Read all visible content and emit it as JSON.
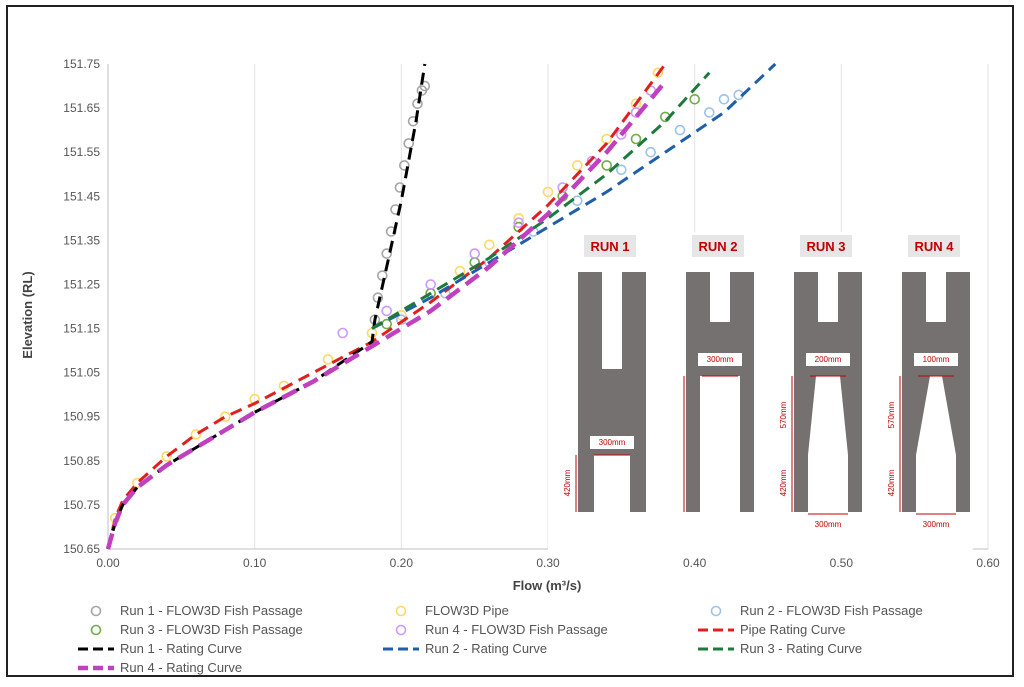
{
  "chart_data": {
    "type": "scatter",
    "xlabel": "Flow (m³/s)",
    "ylabel": "Elevation (RL)",
    "xlim": [
      0.0,
      0.6
    ],
    "ylim": [
      150.65,
      151.75
    ],
    "x_ticks": [
      "0.00",
      "0.10",
      "0.20",
      "0.30",
      "0.40",
      "0.50",
      "0.60"
    ],
    "y_ticks": [
      "150.65",
      "150.75",
      "150.85",
      "150.95",
      "151.05",
      "151.15",
      "151.25",
      "151.35",
      "151.45",
      "151.55",
      "151.65",
      "151.75"
    ],
    "grid": "vertical",
    "legend_position": "bottom",
    "series": [
      {
        "name": "Run 1 - FLOW3D Fish Passage",
        "kind": "scatter",
        "color": "#a6a6a6",
        "x": [
          0.182,
          0.184,
          0.187,
          0.19,
          0.193,
          0.196,
          0.199,
          0.202,
          0.205,
          0.208,
          0.211,
          0.214,
          0.216
        ],
        "y": [
          151.17,
          151.22,
          151.27,
          151.32,
          151.37,
          151.42,
          151.47,
          151.52,
          151.57,
          151.62,
          151.66,
          151.69,
          151.7
        ]
      },
      {
        "name": "FLOW3D Pipe",
        "kind": "scatter",
        "color": "#ffd966",
        "x": [
          0.005,
          0.02,
          0.04,
          0.06,
          0.08,
          0.1,
          0.12,
          0.15,
          0.18,
          0.2,
          0.22,
          0.24,
          0.26,
          0.28,
          0.3,
          0.32,
          0.34,
          0.36,
          0.375
        ],
        "y": [
          150.72,
          150.8,
          150.86,
          150.91,
          150.95,
          150.99,
          151.02,
          151.08,
          151.14,
          151.18,
          151.23,
          151.28,
          151.34,
          151.4,
          151.46,
          151.52,
          151.58,
          151.66,
          151.73
        ]
      },
      {
        "name": "Run 2 - FLOW3D Fish Passage",
        "kind": "scatter",
        "color": "#9dc3e6",
        "x": [
          0.2,
          0.23,
          0.26,
          0.29,
          0.32,
          0.35,
          0.37,
          0.39,
          0.41,
          0.42,
          0.43
        ],
        "y": [
          151.17,
          151.23,
          151.3,
          151.37,
          151.44,
          151.51,
          151.55,
          151.6,
          151.64,
          151.67,
          151.68
        ]
      },
      {
        "name": "Run 3 - FLOW3D Fish Passage",
        "kind": "scatter",
        "color": "#70ad47",
        "x": [
          0.19,
          0.22,
          0.25,
          0.28,
          0.31,
          0.34,
          0.36,
          0.38,
          0.4
        ],
        "y": [
          151.16,
          151.23,
          151.3,
          151.38,
          151.45,
          151.52,
          151.58,
          151.63,
          151.67
        ]
      },
      {
        "name": "Run 4 - FLOW3D Fish Passage",
        "kind": "scatter",
        "color": "#cc99ff",
        "x": [
          0.16,
          0.19,
          0.22,
          0.25,
          0.28,
          0.31,
          0.33,
          0.35,
          0.36,
          0.37
        ],
        "y": [
          151.14,
          151.19,
          151.25,
          151.32,
          151.39,
          151.47,
          151.53,
          151.59,
          151.64,
          151.69
        ]
      },
      {
        "name": "Pipe Rating Curve",
        "kind": "line",
        "color": "#e02020",
        "x": [
          0.0,
          0.005,
          0.01,
          0.02,
          0.04,
          0.06,
          0.08,
          0.1,
          0.14,
          0.18,
          0.22,
          0.26,
          0.3,
          0.34,
          0.38
        ],
        "y": [
          150.65,
          150.72,
          150.76,
          150.8,
          150.86,
          150.91,
          150.95,
          150.98,
          151.05,
          151.12,
          151.21,
          151.31,
          151.43,
          151.57,
          151.75
        ]
      },
      {
        "name": "Run 1 - Rating Curve",
        "kind": "line",
        "color": "#000000",
        "x": [
          0.0,
          0.005,
          0.01,
          0.02,
          0.04,
          0.06,
          0.08,
          0.1,
          0.14,
          0.18,
          0.182,
          0.19,
          0.2,
          0.21,
          0.216
        ],
        "y": [
          150.65,
          150.71,
          150.75,
          150.79,
          150.84,
          150.88,
          150.92,
          150.96,
          151.03,
          151.12,
          151.17,
          151.29,
          151.44,
          151.62,
          151.75
        ]
      },
      {
        "name": "Run 2 - Rating Curve",
        "kind": "line",
        "color": "#1f5fa8",
        "x": [
          0.18,
          0.22,
          0.26,
          0.3,
          0.34,
          0.38,
          0.42,
          0.455
        ],
        "y": [
          151.15,
          151.22,
          151.3,
          151.38,
          151.46,
          151.55,
          151.64,
          151.75
        ]
      },
      {
        "name": "Run 3 - Rating Curve",
        "kind": "line",
        "color": "#1e7a3c",
        "x": [
          0.18,
          0.22,
          0.26,
          0.3,
          0.34,
          0.38,
          0.41
        ],
        "y": [
          151.15,
          151.23,
          151.31,
          151.4,
          151.5,
          151.62,
          151.73
        ]
      },
      {
        "name": "Run 4 - Rating Curve",
        "kind": "line",
        "color": "#c040c0",
        "x": [
          0.0,
          0.005,
          0.01,
          0.02,
          0.04,
          0.06,
          0.08,
          0.1,
          0.14,
          0.18,
          0.22,
          0.26,
          0.3,
          0.34,
          0.38
        ],
        "y": [
          150.65,
          150.71,
          150.75,
          150.79,
          150.84,
          150.88,
          150.92,
          150.96,
          151.03,
          151.11,
          151.19,
          151.29,
          151.41,
          151.55,
          151.71
        ]
      }
    ],
    "legend_rows": [
      [
        "Run 1 - FLOW3D Fish Passage",
        "FLOW3D Pipe",
        "Run 2 - FLOW3D Fish Passage"
      ],
      [
        "Run 3 - FLOW3D Fish Passage",
        "Run 4 - FLOW3D Fish Passage",
        "Pipe Rating Curve"
      ],
      [
        "Run 1 - Rating Curve",
        "Run 2 - Rating Curve",
        "Run 3 - Rating Curve"
      ],
      [
        "Run 4 - Rating Curve"
      ]
    ],
    "inset": {
      "runs": [
        {
          "label": "RUN 1",
          "top_width": "300mm",
          "height": "420mm"
        },
        {
          "label": "RUN 2",
          "top_width": "300mm",
          "height": ""
        },
        {
          "label": "RUN 3",
          "top_width": "200mm",
          "height_upper": "570mm",
          "height_lower": "420mm",
          "bottom_width": "300mm"
        },
        {
          "label": "RUN 4",
          "top_width": "100mm",
          "height_upper": "570mm",
          "height_lower": "420mm",
          "bottom_width": "300mm"
        }
      ]
    }
  }
}
